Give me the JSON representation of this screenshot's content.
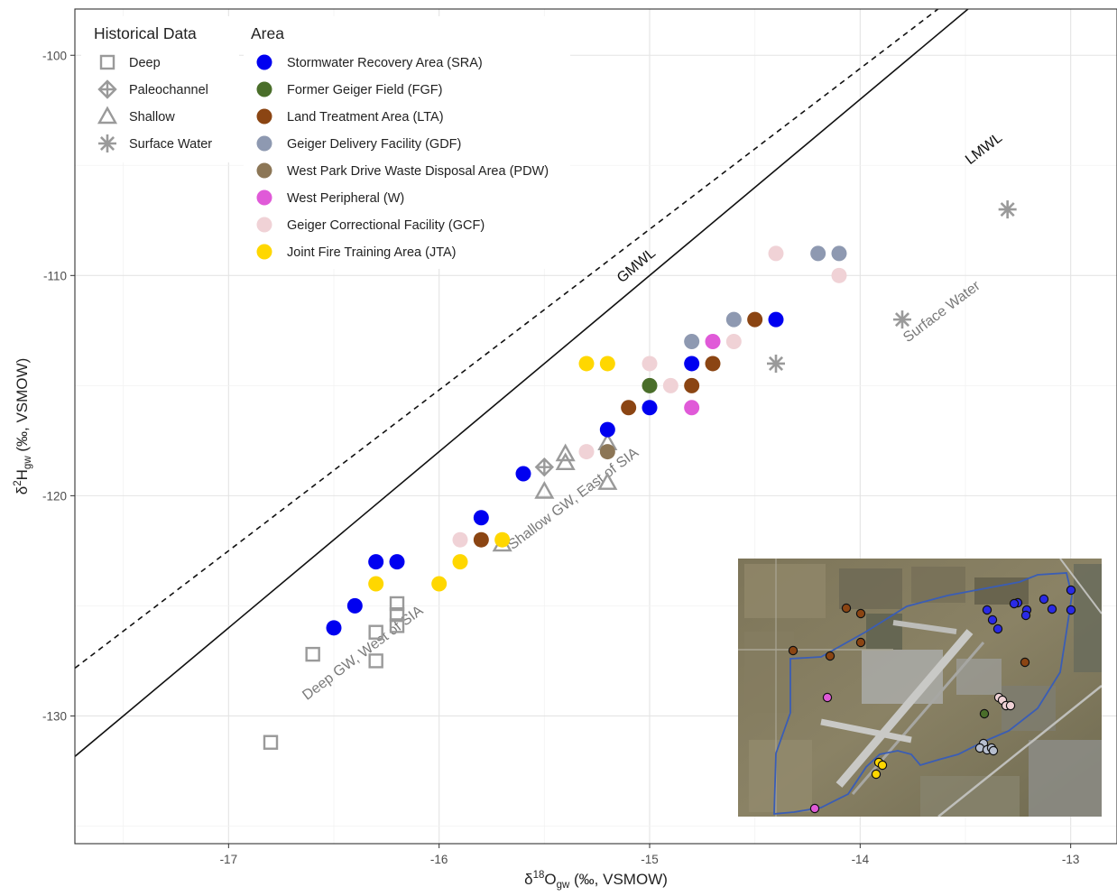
{
  "chart_data": {
    "type": "scatter",
    "xlabel": "δ18Ogw (‰, VSMOW)",
    "xlabel_parts": {
      "pre": "δ",
      "sup": "18",
      "main": "O",
      "sub": "gw",
      "post": " (‰, VSMOW)"
    },
    "ylabel": "δ2Hgw (‰, VSMOW)",
    "ylabel_parts": {
      "pre": "δ",
      "sup": "2",
      "main": "H",
      "sub": "gw",
      "post": " (‰, VSMOW)"
    },
    "xlim": [
      -17.73,
      -12.78
    ],
    "ylim": [
      -135.8,
      -97.9
    ],
    "x_ticks": [
      -17,
      -16,
      -15,
      -14,
      -13
    ],
    "y_ticks": [
      -130,
      -120,
      -110,
      -100
    ],
    "grid": true,
    "legend_position": "top-left",
    "lines": [
      {
        "name": "GMWL",
        "style": "solid",
        "slope": 8,
        "intercept": 10,
        "label_at": [
          -15.05,
          -109.7
        ]
      },
      {
        "name": "LMWL",
        "style": "dashed",
        "slope": 7.3,
        "intercept": 1.6,
        "label_at": [
          -13.4,
          -104.4
        ]
      }
    ],
    "region_labels": [
      {
        "text": "Deep GW, West of SIA",
        "at": [
          -16.35,
          -127.3
        ]
      },
      {
        "text": "Shallow GW, East of SIA",
        "at": [
          -15.35,
          -120.3
        ]
      },
      {
        "text": "Surface Water",
        "at": [
          -13.6,
          -111.8
        ]
      }
    ],
    "historical": {
      "title": "Historical Data",
      "color": "#9a9a9a",
      "series": [
        {
          "name": "Deep",
          "marker": "square",
          "points": [
            [
              -16.6,
              -127.2
            ],
            [
              -16.3,
              -126.2
            ],
            [
              -16.3,
              -127.5
            ],
            [
              -16.2,
              -124.9
            ],
            [
              -16.2,
              -125.4
            ],
            [
              -16.2,
              -125.9
            ],
            [
              -16.8,
              -131.2
            ]
          ]
        },
        {
          "name": "Paleochannel",
          "marker": "diamond-plus",
          "points": [
            [
              -15.5,
              -118.7
            ]
          ]
        },
        {
          "name": "Shallow",
          "marker": "triangle",
          "points": [
            [
              -15.7,
              -122.2
            ],
            [
              -15.5,
              -119.8
            ],
            [
              -15.4,
              -118.5
            ],
            [
              -15.4,
              -118.1
            ],
            [
              -15.2,
              -117.6
            ],
            [
              -15.2,
              -119.4
            ]
          ]
        },
        {
          "name": "Surface Water",
          "marker": "asterisk",
          "points": [
            [
              -13.3,
              -107.0
            ],
            [
              -13.8,
              -112.0
            ],
            [
              -14.4,
              -114.0
            ]
          ]
        }
      ]
    },
    "area": {
      "title": "Area",
      "series": [
        {
          "name": "Stormwater Recovery Area (SRA)",
          "color": "#0000f0",
          "points": [
            [
              -16.5,
              -126
            ],
            [
              -16.4,
              -125
            ],
            [
              -16.3,
              -123
            ],
            [
              -16.2,
              -123
            ],
            [
              -15.8,
              -121
            ],
            [
              -15.6,
              -119
            ],
            [
              -15.2,
              -117
            ],
            [
              -15.0,
              -116
            ],
            [
              -14.8,
              -114
            ],
            [
              -14.4,
              -112
            ]
          ]
        },
        {
          "name": "Former Geiger Field (FGF)",
          "color": "#4a6e2a",
          "points": [
            [
              -15.0,
              -115
            ]
          ]
        },
        {
          "name": "Land Treatment Area (LTA)",
          "color": "#8b4513",
          "points": [
            [
              -15.8,
              -122
            ],
            [
              -15.1,
              -116
            ],
            [
              -14.8,
              -115
            ],
            [
              -14.7,
              -114
            ],
            [
              -14.5,
              -112
            ]
          ]
        },
        {
          "name": "Geiger Delivery Facility (GDF)",
          "color": "#8e99b1",
          "points": [
            [
              -14.8,
              -113
            ],
            [
              -14.6,
              -112
            ],
            [
              -14.2,
              -109
            ],
            [
              -14.1,
              -109
            ]
          ]
        },
        {
          "name": "West Park Drive Waste Disposal Area (PDW)",
          "color": "#8c7656",
          "points": [
            [
              -15.2,
              -118
            ]
          ]
        },
        {
          "name": "West Peripheral (W)",
          "color": "#e05ad8",
          "points": [
            [
              -14.8,
              -116
            ],
            [
              -14.7,
              -113
            ]
          ]
        },
        {
          "name": "Geiger Correctional Facility (GCF)",
          "color": "#f0d2d6",
          "points": [
            [
              -15.9,
              -122
            ],
            [
              -15.3,
              -118
            ],
            [
              -15.0,
              -114
            ],
            [
              -14.9,
              -115
            ],
            [
              -14.6,
              -113
            ],
            [
              -14.4,
              -109
            ],
            [
              -14.1,
              -110
            ]
          ]
        },
        {
          "name": "Joint Fire Training Area (JTA)",
          "color": "#ffd700",
          "points": [
            [
              -16.3,
              -124
            ],
            [
              -16.0,
              -124
            ],
            [
              -15.9,
              -123
            ],
            [
              -15.7,
              -122
            ],
            [
              -15.3,
              -114
            ],
            [
              -15.2,
              -114
            ]
          ]
        }
      ]
    },
    "inset_map": {
      "description_name": "site-aerial-map",
      "boundary_color": "#3a5db5"
    }
  }
}
